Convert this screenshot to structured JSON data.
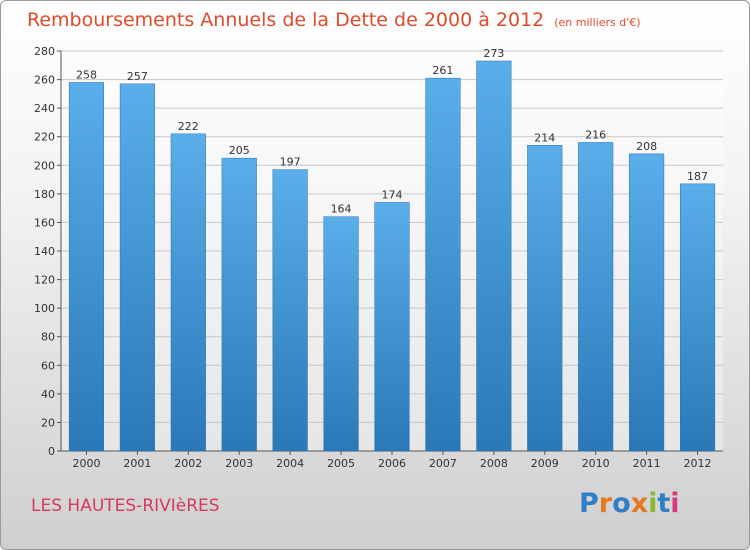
{
  "header": {
    "title": "Remboursements Annuels de la Dette de 2000 à 2012",
    "subtitle": "(en milliers d'€)"
  },
  "footer": {
    "municipality": "LES HAUTES-RIVIèRES",
    "logo_text": "Proxiti",
    "logo_colors": [
      "#2f7fc4",
      "#e8781e",
      "#2f7fc4",
      "#e8781e",
      "#8ab832",
      "#2f7fc4",
      "#d8387a"
    ]
  },
  "colors": {
    "bar_top": "#5aaeea",
    "bar_bottom": "#2a78b8",
    "text": "#333333",
    "accent": "#e04a2a"
  },
  "chart_data": {
    "type": "bar",
    "title": "Remboursements Annuels de la Dette de 2000 à 2012",
    "subtitle": "(en milliers d'€)",
    "categories": [
      "2000",
      "2001",
      "2002",
      "2003",
      "2004",
      "2005",
      "2006",
      "2007",
      "2008",
      "2009",
      "2010",
      "2011",
      "2012"
    ],
    "values": [
      258,
      257,
      222,
      205,
      197,
      164,
      174,
      261,
      273,
      214,
      216,
      208,
      187
    ],
    "ylim": [
      0,
      280
    ],
    "yticks": [
      0,
      20,
      40,
      60,
      80,
      100,
      120,
      140,
      160,
      180,
      200,
      220,
      240,
      260,
      280
    ],
    "xlabel": "",
    "ylabel": "",
    "grid": true
  }
}
